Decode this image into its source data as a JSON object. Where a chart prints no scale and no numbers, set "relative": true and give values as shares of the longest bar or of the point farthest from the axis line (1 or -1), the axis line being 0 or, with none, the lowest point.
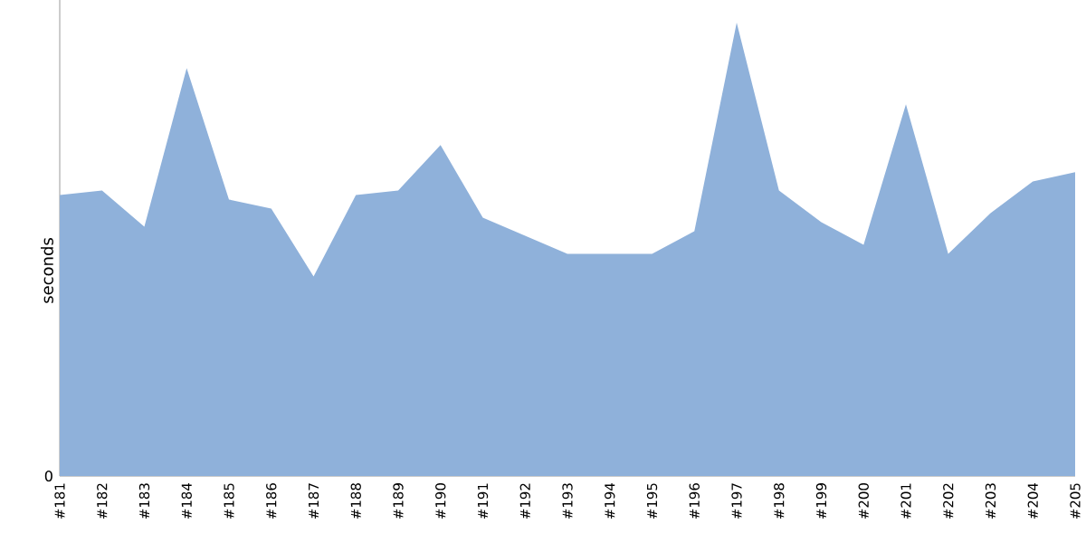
{
  "chart_data": {
    "type": "area",
    "relative": true,
    "ylabel": "seconds",
    "annotations": [
      "0"
    ],
    "categories": [
      "#181",
      "#182",
      "#183",
      "#184",
      "#185",
      "#186",
      "#187",
      "#188",
      "#189",
      "#190",
      "#191",
      "#192",
      "#193",
      "#194",
      "#195",
      "#196",
      "#197",
      "#198",
      "#199",
      "#200",
      "#201",
      "#202",
      "#203",
      "#204",
      "#205"
    ],
    "series": [
      {
        "color": "#8fb1da",
        "values": [
          0.62,
          0.63,
          0.55,
          0.9,
          0.61,
          0.59,
          0.44,
          0.62,
          0.63,
          0.73,
          0.57,
          0.53,
          0.49,
          0.49,
          0.49,
          0.54,
          1,
          0.63,
          0.56,
          0.51,
          0.82,
          0.49,
          0.58,
          0.65,
          0.67
        ]
      }
    ]
  }
}
